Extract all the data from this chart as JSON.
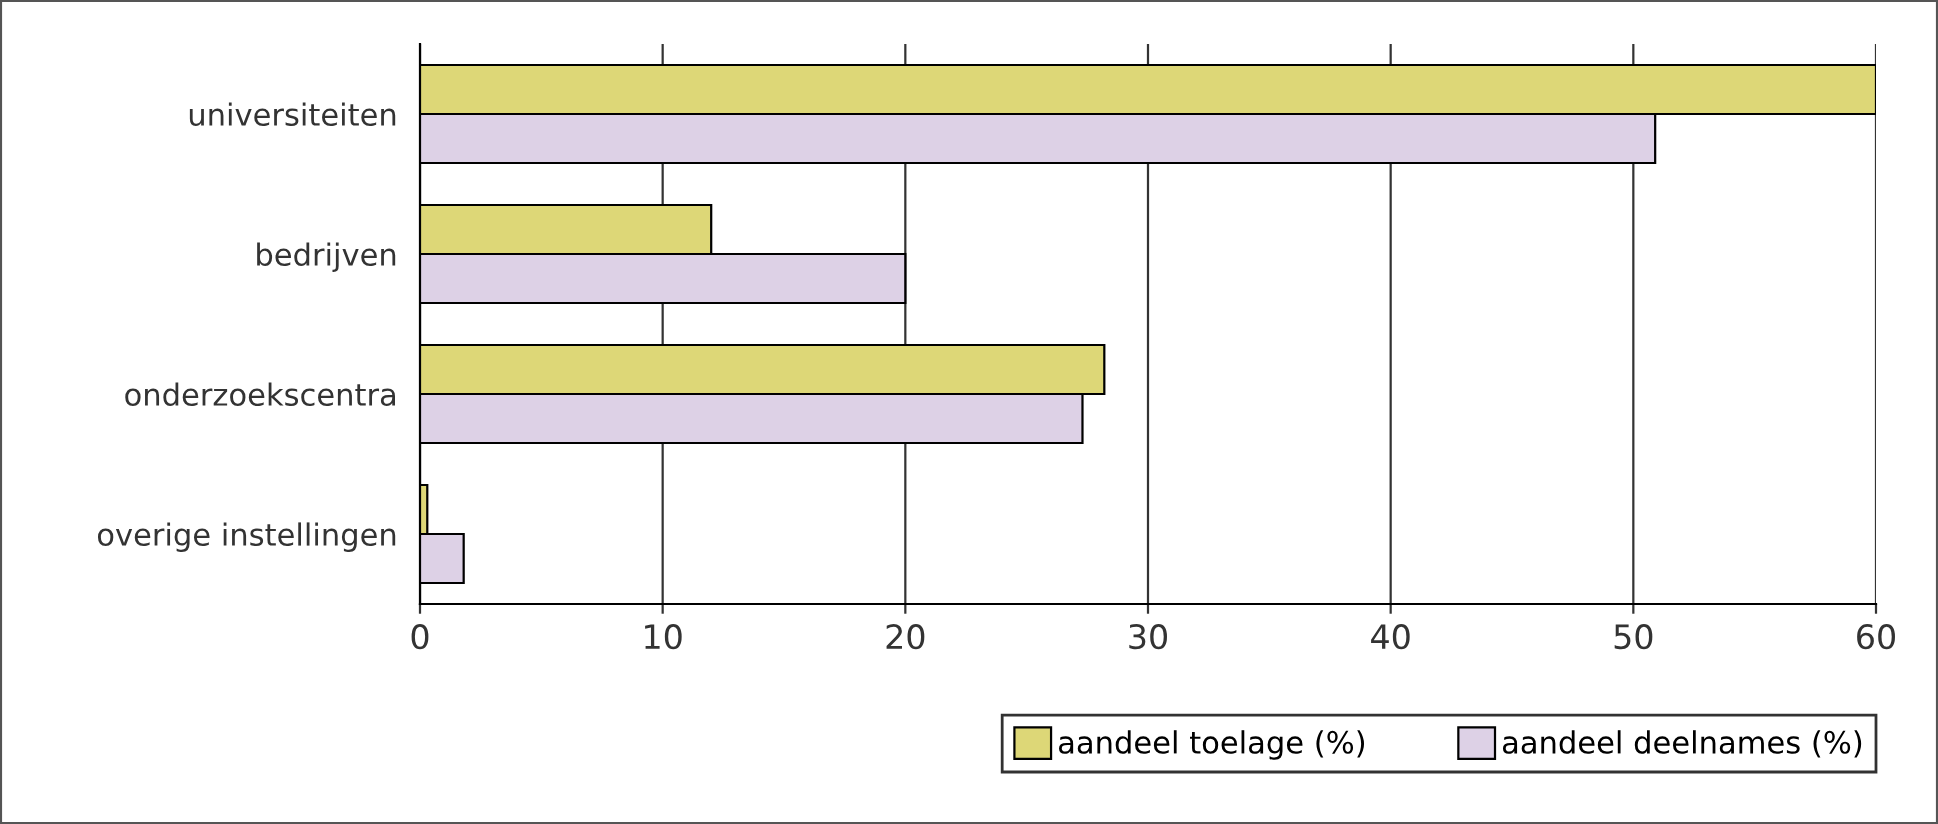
{
  "chart_data": {
    "type": "bar",
    "orientation": "horizontal",
    "categories": [
      "universiteiten",
      "bedrijven",
      "onderzoekscentra",
      "overige instellingen"
    ],
    "series": [
      {
        "name": "aandeel toelage (%)",
        "color": "#ddd777",
        "values": [
          60,
          12,
          28.2,
          0.3
        ]
      },
      {
        "name": "aandeel deelnames (%)",
        "color": "#ddd1e6",
        "values": [
          50.9,
          20,
          27.3,
          1.8
        ]
      }
    ],
    "xlim": [
      0,
      60
    ],
    "xticks": [
      0,
      10,
      20,
      30,
      40,
      50,
      60
    ],
    "grid": "x",
    "legend": "bottom right"
  }
}
